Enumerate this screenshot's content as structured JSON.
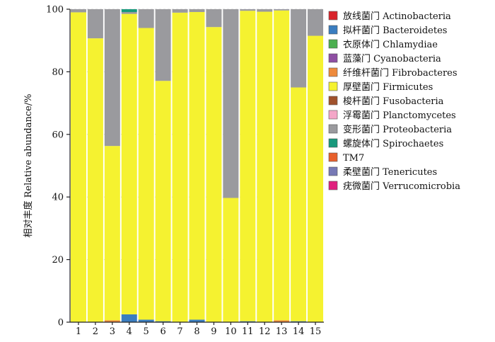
{
  "chart_data": {
    "type": "bar",
    "stacked": true,
    "title": "",
    "xlabel": "",
    "ylabel": "相对丰度 Relative abundance/%",
    "ylim": [
      0,
      100
    ],
    "yticks": [
      "0",
      "20",
      "40",
      "60",
      "80",
      "100"
    ],
    "grid": true,
    "legend_position": "right",
    "categories": [
      "1",
      "2",
      "3",
      "4",
      "5",
      "6",
      "7",
      "8",
      "9",
      "10",
      "11",
      "12",
      "13",
      "14",
      "15"
    ],
    "series": [
      {
        "name": "放线菌门 Actinobacteria",
        "color": "#d9232b",
        "values": [
          0,
          0,
          0,
          0,
          0,
          0,
          0,
          0,
          0,
          0,
          0,
          0,
          0,
          0,
          0
        ]
      },
      {
        "name": "拟杆菌门 Bacteroidetes",
        "color": "#3a7dc0",
        "values": [
          0,
          0,
          0,
          2.5,
          0.8,
          0.3,
          0,
          0.8,
          0,
          0,
          0.3,
          0,
          0,
          0.3,
          0
        ]
      },
      {
        "name": "衣原体门 Chlamydiae",
        "color": "#4caf50",
        "values": [
          0,
          0,
          0,
          0,
          0,
          0,
          0,
          0,
          0,
          0,
          0,
          0,
          0,
          0,
          0
        ]
      },
      {
        "name": "蓝藻门 Cyanobacteria",
        "color": "#8e4fa3",
        "values": [
          0,
          0,
          0,
          0,
          0,
          0,
          0,
          0,
          0,
          0,
          0,
          0,
          0,
          0,
          0
        ]
      },
      {
        "name": "纤维杆菌门 Fibrobacteres",
        "color": "#ee8a3c",
        "values": [
          0,
          0,
          0.6,
          0,
          0,
          0,
          0,
          0,
          0,
          0,
          0,
          0,
          0.6,
          0,
          0
        ]
      },
      {
        "name": "厚壁菌门 Firmicutes",
        "color": "#f5f230",
        "values": [
          99,
          90.7,
          55.7,
          96,
          93.2,
          76.8,
          98.9,
          98.3,
          94.3,
          39.7,
          99.2,
          99.2,
          99,
          74.7,
          91.5
        ]
      },
      {
        "name": "梭杆菌门 Fusobacteria",
        "color": "#a0522d",
        "values": [
          0,
          0,
          0,
          0,
          0,
          0,
          0,
          0,
          0,
          0,
          0,
          0,
          0,
          0,
          0
        ]
      },
      {
        "name": "浮霉菌门 Planctomycetes",
        "color": "#f4a6c8",
        "values": [
          0,
          0,
          0,
          0,
          0,
          0,
          0,
          0,
          0,
          0,
          0,
          0,
          0,
          0,
          0
        ]
      },
      {
        "name": "变形菌门 Proteobacteria",
        "color": "#9a9a9e",
        "values": [
          1,
          9.3,
          43.7,
          0.6,
          6,
          22.9,
          1.1,
          0.9,
          5.7,
          60.3,
          0.5,
          0.8,
          0.4,
          25,
          8.5
        ]
      },
      {
        "name": "螺旋体门 Spirochaetes",
        "color": "#18997c",
        "values": [
          0,
          0,
          0,
          0.9,
          0,
          0,
          0,
          0,
          0,
          0,
          0,
          0,
          0,
          0,
          0
        ]
      },
      {
        "name": "TM7",
        "color": "#e8602c",
        "values": [
          0,
          0,
          0,
          0,
          0,
          0,
          0,
          0,
          0,
          0,
          0,
          0,
          0,
          0,
          0
        ]
      },
      {
        "name": "柔壁菌门 Tenericutes",
        "color": "#7779b5",
        "values": [
          0,
          0,
          0,
          0,
          0,
          0,
          0,
          0,
          0,
          0,
          0,
          0,
          0,
          0,
          0
        ]
      },
      {
        "name": "疣微菌门 Verrucomicrobia",
        "color": "#e0207e",
        "values": [
          0,
          0,
          0,
          0,
          0,
          0,
          0,
          0,
          0,
          0,
          0,
          0,
          0,
          0,
          0
        ]
      }
    ]
  }
}
